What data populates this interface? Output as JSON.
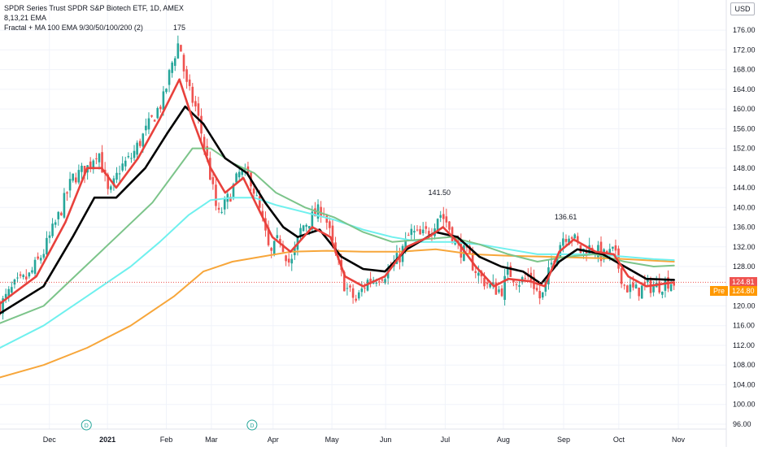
{
  "legend": {
    "title": "SPDR Series Trust SPDR S&P Biotech ETF, 1D, AMEX",
    "line2": "8,13,21 EMA",
    "line3": "Fractal + MA 100 EMA 9/30/50/100/200 (2)"
  },
  "currency": "USD",
  "last_price_label": "124.81",
  "pre_label": "Pre",
  "pre_price_label": "124.80",
  "colors": {
    "up": "#26a69a",
    "down": "#ef5350",
    "ema_fast": "#e8413c",
    "ema_mid": "#000000",
    "ema_slow": "#7cc48a",
    "ema_cyan": "#6ff0ee",
    "ema_orange": "#f7a63a",
    "last_price": "#ef5350",
    "pre_price": "#ff9800",
    "grid": "#f0f3fa",
    "axis_text": "#131722"
  },
  "chart_data": {
    "type": "candlestick",
    "y_ticks": [
      "96.00",
      "100.00",
      "104.00",
      "108.00",
      "112.00",
      "116.00",
      "120.00",
      "124.00",
      "128.00",
      "132.00",
      "136.00",
      "140.00",
      "144.00",
      "148.00",
      "152.00",
      "156.00",
      "160.00",
      "164.00",
      "168.00",
      "172.00",
      "176.00"
    ],
    "ylim": [
      95,
      178
    ],
    "x_labels": [
      "Dec",
      "2021",
      "Feb",
      "Mar",
      "Apr",
      "May",
      "Jun",
      "Jul",
      "Aug",
      "Sep",
      "Oct",
      "Nov"
    ],
    "x_label_positions": [
      0.068,
      0.148,
      0.229,
      0.291,
      0.376,
      0.457,
      0.531,
      0.613,
      0.693,
      0.776,
      0.852,
      0.934
    ],
    "event_markers": [
      {
        "label": "D",
        "x": 0.119
      },
      {
        "label": "D",
        "x": 0.347
      }
    ],
    "fractal_labels": [
      {
        "text": "175",
        "x": 0.247,
        "y": 175.0
      },
      {
        "text": "141.50",
        "x": 0.605,
        "y": 141.5
      },
      {
        "text": "136.61",
        "x": 0.779,
        "y": 136.61
      }
    ],
    "anchors": [
      [
        0.0,
        120.0
      ],
      [
        0.02,
        124.0
      ],
      [
        0.04,
        126.0
      ],
      [
        0.06,
        131.0
      ],
      [
        0.08,
        138.0
      ],
      [
        0.1,
        146.0
      ],
      [
        0.12,
        148.0
      ],
      [
        0.135,
        152.0
      ],
      [
        0.15,
        142.0
      ],
      [
        0.165,
        148.0
      ],
      [
        0.18,
        150.0
      ],
      [
        0.195,
        154.0
      ],
      [
        0.21,
        158.0
      ],
      [
        0.225,
        162.0
      ],
      [
        0.238,
        170.0
      ],
      [
        0.247,
        174.0
      ],
      [
        0.256,
        165.0
      ],
      [
        0.27,
        160.0
      ],
      [
        0.285,
        150.0
      ],
      [
        0.3,
        138.0
      ],
      [
        0.315,
        142.0
      ],
      [
        0.33,
        147.0
      ],
      [
        0.345,
        146.0
      ],
      [
        0.36,
        138.0
      ],
      [
        0.372,
        130.0
      ],
      [
        0.385,
        134.0
      ],
      [
        0.4,
        128.0
      ],
      [
        0.415,
        136.0
      ],
      [
        0.43,
        138.0
      ],
      [
        0.445,
        140.0
      ],
      [
        0.46,
        131.0
      ],
      [
        0.475,
        124.0
      ],
      [
        0.49,
        121.0
      ],
      [
        0.505,
        125.0
      ],
      [
        0.52,
        126.0
      ],
      [
        0.535,
        127.0
      ],
      [
        0.55,
        130.0
      ],
      [
        0.565,
        135.0
      ],
      [
        0.58,
        134.0
      ],
      [
        0.595,
        136.0
      ],
      [
        0.605,
        139.0
      ],
      [
        0.615,
        137.0
      ],
      [
        0.63,
        132.0
      ],
      [
        0.645,
        130.0
      ],
      [
        0.66,
        126.0
      ],
      [
        0.675,
        124.0
      ],
      [
        0.69,
        123.0
      ],
      [
        0.7,
        127.0
      ],
      [
        0.715,
        125.0
      ],
      [
        0.73,
        126.0
      ],
      [
        0.745,
        121.0
      ],
      [
        0.76,
        129.0
      ],
      [
        0.775,
        134.0
      ],
      [
        0.785,
        135.0
      ],
      [
        0.8,
        131.0
      ],
      [
        0.815,
        132.0
      ],
      [
        0.83,
        130.0
      ],
      [
        0.845,
        131.0
      ],
      [
        0.86,
        124.0
      ],
      [
        0.875,
        123.0
      ],
      [
        0.89,
        124.0
      ],
      [
        0.905,
        124.0
      ],
      [
        0.92,
        125.0
      ],
      [
        0.928,
        124.8
      ]
    ],
    "ema_fast": [
      [
        0.0,
        120.5
      ],
      [
        0.05,
        126.0
      ],
      [
        0.09,
        137.0
      ],
      [
        0.12,
        148.0
      ],
      [
        0.14,
        148.0
      ],
      [
        0.16,
        144.0
      ],
      [
        0.19,
        150.0
      ],
      [
        0.22,
        158.0
      ],
      [
        0.247,
        166.0
      ],
      [
        0.265,
        158.0
      ],
      [
        0.29,
        148.0
      ],
      [
        0.31,
        143.0
      ],
      [
        0.335,
        146.0
      ],
      [
        0.355,
        140.0
      ],
      [
        0.375,
        134.0
      ],
      [
        0.4,
        131.0
      ],
      [
        0.43,
        136.0
      ],
      [
        0.455,
        134.0
      ],
      [
        0.475,
        126.0
      ],
      [
        0.5,
        124.0
      ],
      [
        0.53,
        126.0
      ],
      [
        0.56,
        132.0
      ],
      [
        0.59,
        134.0
      ],
      [
        0.61,
        136.0
      ],
      [
        0.63,
        133.0
      ],
      [
        0.655,
        128.0
      ],
      [
        0.68,
        124.0
      ],
      [
        0.7,
        125.5
      ],
      [
        0.73,
        125.0
      ],
      [
        0.75,
        124.0
      ],
      [
        0.77,
        131.0
      ],
      [
        0.79,
        133.5
      ],
      [
        0.82,
        131.0
      ],
      [
        0.845,
        130.5
      ],
      [
        0.865,
        126.0
      ],
      [
        0.89,
        124.0
      ],
      [
        0.928,
        124.8
      ]
    ],
    "ema_mid": [
      [
        0.0,
        118.5
      ],
      [
        0.06,
        124.0
      ],
      [
        0.1,
        134.0
      ],
      [
        0.13,
        142.0
      ],
      [
        0.16,
        142.0
      ],
      [
        0.2,
        148.0
      ],
      [
        0.23,
        155.0
      ],
      [
        0.255,
        160.5
      ],
      [
        0.28,
        157.0
      ],
      [
        0.31,
        150.0
      ],
      [
        0.34,
        147.0
      ],
      [
        0.365,
        141.0
      ],
      [
        0.39,
        136.0
      ],
      [
        0.41,
        134.0
      ],
      [
        0.44,
        135.5
      ],
      [
        0.47,
        130.0
      ],
      [
        0.5,
        127.5
      ],
      [
        0.53,
        127.0
      ],
      [
        0.56,
        131.5
      ],
      [
        0.6,
        135.0
      ],
      [
        0.63,
        134.0
      ],
      [
        0.66,
        130.0
      ],
      [
        0.69,
        128.0
      ],
      [
        0.72,
        127.0
      ],
      [
        0.745,
        124.5
      ],
      [
        0.77,
        129.0
      ],
      [
        0.795,
        131.5
      ],
      [
        0.83,
        130.5
      ],
      [
        0.86,
        128.0
      ],
      [
        0.89,
        125.5
      ],
      [
        0.928,
        125.3
      ]
    ],
    "ema_slow": [
      [
        0.0,
        116.5
      ],
      [
        0.06,
        120.0
      ],
      [
        0.11,
        127.0
      ],
      [
        0.16,
        134.0
      ],
      [
        0.21,
        141.0
      ],
      [
        0.24,
        147.0
      ],
      [
        0.265,
        152.0
      ],
      [
        0.29,
        152.0
      ],
      [
        0.32,
        149.0
      ],
      [
        0.35,
        147.0
      ],
      [
        0.38,
        143.0
      ],
      [
        0.42,
        140.0
      ],
      [
        0.46,
        138.0
      ],
      [
        0.5,
        135.0
      ],
      [
        0.54,
        133.0
      ],
      [
        0.58,
        133.5
      ],
      [
        0.62,
        134.0
      ],
      [
        0.66,
        132.5
      ],
      [
        0.7,
        130.5
      ],
      [
        0.74,
        129.0
      ],
      [
        0.78,
        130.0
      ],
      [
        0.82,
        130.5
      ],
      [
        0.86,
        129.0
      ],
      [
        0.9,
        128.0
      ],
      [
        0.928,
        128.2
      ]
    ],
    "ema_cyan": [
      [
        0.0,
        111.5
      ],
      [
        0.06,
        116.0
      ],
      [
        0.12,
        122.0
      ],
      [
        0.18,
        128.0
      ],
      [
        0.22,
        133.0
      ],
      [
        0.26,
        138.5
      ],
      [
        0.29,
        141.5
      ],
      [
        0.32,
        142.0
      ],
      [
        0.35,
        142.0
      ],
      [
        0.38,
        140.5
      ],
      [
        0.42,
        139.0
      ],
      [
        0.46,
        137.5
      ],
      [
        0.5,
        135.5
      ],
      [
        0.54,
        134.0
      ],
      [
        0.58,
        133.0
      ],
      [
        0.62,
        133.0
      ],
      [
        0.66,
        132.5
      ],
      [
        0.7,
        131.5
      ],
      [
        0.74,
        130.5
      ],
      [
        0.78,
        130.5
      ],
      [
        0.82,
        130.5
      ],
      [
        0.86,
        130.0
      ],
      [
        0.9,
        129.5
      ],
      [
        0.928,
        129.3
      ]
    ],
    "ema_orange": [
      [
        0.0,
        105.5
      ],
      [
        0.06,
        108.0
      ],
      [
        0.12,
        111.5
      ],
      [
        0.18,
        116.0
      ],
      [
        0.24,
        122.0
      ],
      [
        0.28,
        127.0
      ],
      [
        0.32,
        129.0
      ],
      [
        0.36,
        130.0
      ],
      [
        0.4,
        131.0
      ],
      [
        0.45,
        131.2
      ],
      [
        0.5,
        131.0
      ],
      [
        0.55,
        131.0
      ],
      [
        0.6,
        131.5
      ],
      [
        0.65,
        130.5
      ],
      [
        0.7,
        130.2
      ],
      [
        0.75,
        130.0
      ],
      [
        0.8,
        129.8
      ],
      [
        0.85,
        129.6
      ],
      [
        0.9,
        129.2
      ],
      [
        0.928,
        129.0
      ]
    ],
    "last_price": 124.81,
    "pre_price": 124.8
  }
}
